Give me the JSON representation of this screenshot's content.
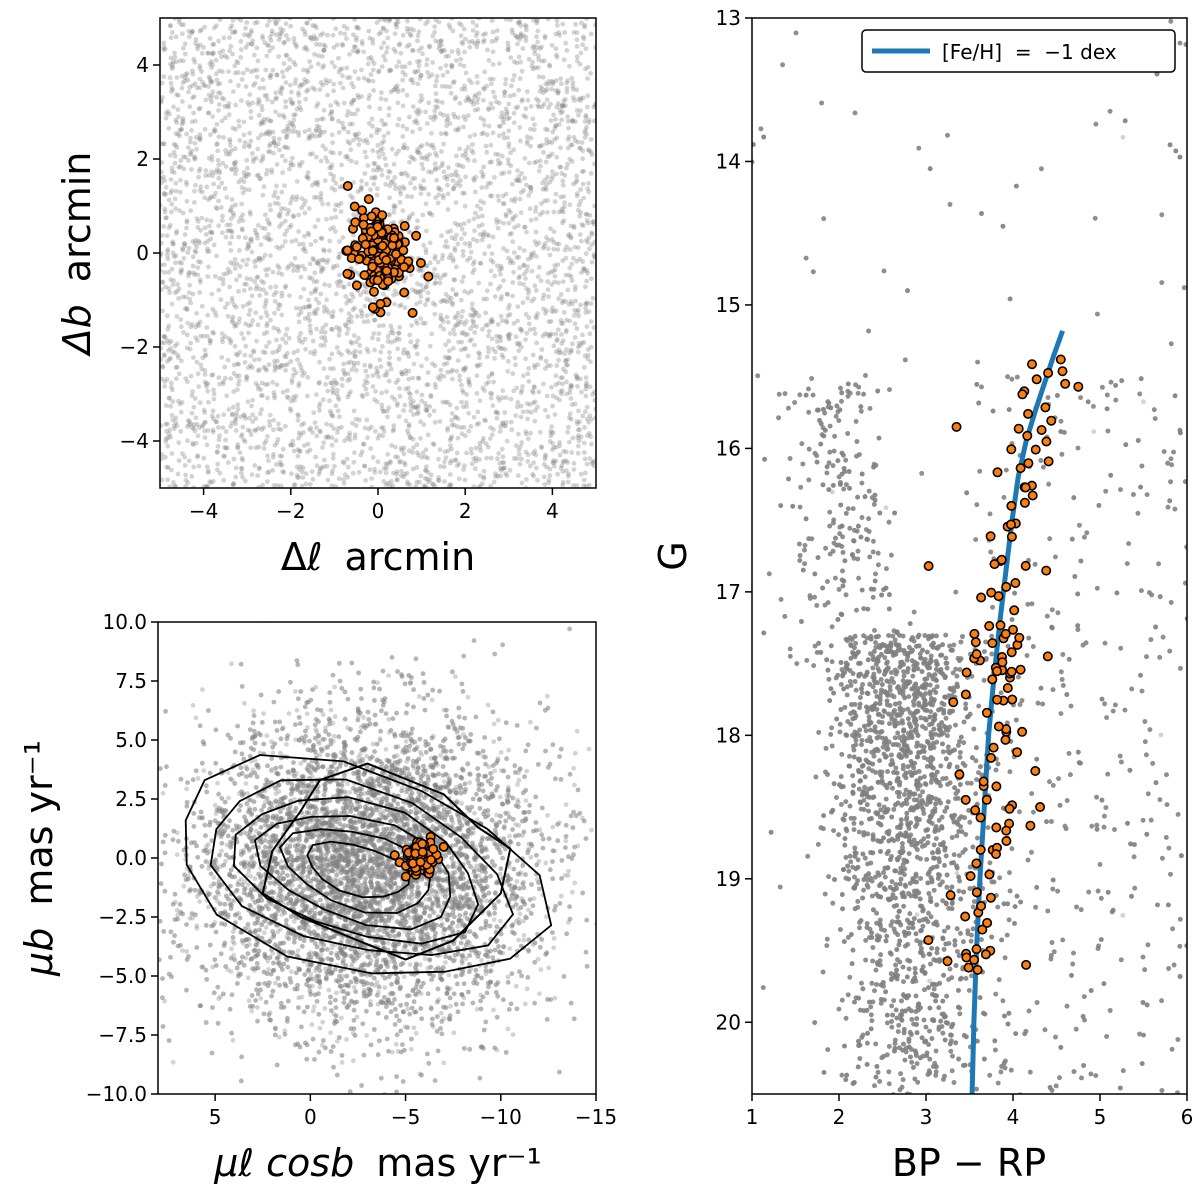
{
  "figure": {
    "panels": [
      "sky",
      "proper_motion",
      "cmd"
    ]
  },
  "chart_data": [
    {
      "id": "sky",
      "type": "scatter",
      "title": "",
      "xlabel_main": "Δℓ",
      "xlabel_unit": "arcmin",
      "ylabel_main": "Δb",
      "ylabel_unit": "arcmin",
      "xlim": [
        -5,
        5
      ],
      "ylim": [
        -5,
        5
      ],
      "xticks": [
        -4,
        -2,
        0,
        2,
        4
      ],
      "yticks": [
        -4,
        -2,
        0,
        2,
        4
      ],
      "xtick_labels": [
        "−4",
        "−2",
        "0",
        "2",
        "4"
      ],
      "ytick_labels": [
        "−4",
        "−2",
        "0",
        "2",
        "4"
      ],
      "grid": false,
      "series": [
        {
          "role": "field_stars",
          "color": "#808080",
          "distribution": "uniform",
          "x_range": [
            -5,
            5
          ],
          "y_range": [
            -5,
            5
          ],
          "approx_count": 4200
        },
        {
          "role": "members",
          "color": "#ff7f0e",
          "edgecolor": "#000000",
          "center": [
            0.0,
            0.0
          ],
          "sigma": [
            0.35,
            0.5
          ],
          "approx_count": 140
        }
      ]
    },
    {
      "id": "proper_motion",
      "type": "scatter",
      "title": "",
      "xlabel_main": "μℓ cosb",
      "xlabel_unit": "mas yr⁻¹",
      "ylabel_main": "μb",
      "ylabel_unit": "mas yr⁻¹",
      "xlim": [
        8,
        -15
      ],
      "ylim": [
        -10,
        10
      ],
      "xticks": [
        5,
        0,
        -5,
        -10,
        -15
      ],
      "xtick_labels": [
        "5",
        "0",
        "−5",
        "−10",
        "−15"
      ],
      "yticks": [
        10,
        7.5,
        5,
        2.5,
        0,
        -2.5,
        -5,
        -7.5,
        -10
      ],
      "ytick_labels": [
        "10.0",
        "7.5",
        "5.0",
        "2.5",
        "0.0",
        "−2.5",
        "−5.0",
        "−7.5",
        "−10.0"
      ],
      "grid": false,
      "series": [
        {
          "role": "field_stars",
          "color": "#808080",
          "center": [
            -3,
            -0.5
          ],
          "sigma": [
            4.5,
            3.2
          ],
          "approx_count": 9000
        },
        {
          "role": "members",
          "color": "#ff7f0e",
          "edgecolor": "#000000",
          "center": [
            -5.8,
            0.0
          ],
          "sigma": [
            0.5,
            0.35
          ],
          "approx_count": 80
        }
      ],
      "contours": {
        "color": "#000000",
        "center": [
          -2.5,
          -0.5
        ],
        "semi_axes": [
          [
            2.8,
            1.0
          ],
          [
            4.1,
            1.55
          ],
          [
            5.4,
            2.1
          ],
          [
            6.7,
            2.7
          ],
          [
            8.2,
            3.3
          ],
          [
            10.1,
            4.1
          ]
        ],
        "outer": [
          [
            -0.5,
            3.3
          ],
          [
            -3.0,
            4.0
          ],
          [
            -7.0,
            2.7
          ],
          [
            -8.8,
            1.3
          ],
          [
            -10.5,
            0.4
          ],
          [
            -10.0,
            -1.5
          ],
          [
            -7.5,
            -3.5
          ],
          [
            -5.0,
            -4.3
          ],
          [
            -2.5,
            -3.5
          ],
          [
            0.5,
            -2.5
          ],
          [
            2.5,
            -1.5
          ],
          [
            2.0,
            0.3
          ],
          [
            0.5,
            2.0
          ]
        ]
      }
    },
    {
      "id": "cmd",
      "type": "scatter",
      "title": "",
      "xlabel": "BP − RP",
      "ylabel": "G",
      "xlim": [
        1,
        6
      ],
      "ylim": [
        20.5,
        13
      ],
      "xticks": [
        1,
        2,
        3,
        4,
        5,
        6
      ],
      "xtick_labels": [
        "1",
        "2",
        "3",
        "4",
        "5",
        "6"
      ],
      "yticks": [
        13,
        14,
        15,
        16,
        17,
        18,
        19,
        20
      ],
      "ytick_labels": [
        "13",
        "14",
        "15",
        "16",
        "17",
        "18",
        "19",
        "20"
      ],
      "grid": false,
      "legend": {
        "position": "top-right",
        "entries": [
          {
            "label": "[Fe/H]  =  −1 dex",
            "color": "#1f77b4"
          }
        ]
      },
      "series": [
        {
          "role": "field_stars",
          "color": "#808080",
          "approx_count": 12000
        },
        {
          "role": "members",
          "color": "#ff7f0e",
          "edgecolor": "#000000",
          "approx_count": 130
        },
        {
          "role": "isochrone",
          "name": "[Fe/H]  =  −1 dex",
          "color": "#1f77b4",
          "x": [
            3.53,
            3.55,
            3.58,
            3.62,
            3.67,
            3.72,
            3.78,
            3.85,
            3.92,
            3.99,
            4.06,
            4.15,
            4.25,
            4.36,
            4.47,
            4.57
          ],
          "y": [
            20.5,
            20.0,
            19.5,
            19.0,
            18.5,
            18.0,
            17.6,
            17.2,
            16.85,
            16.5,
            16.2,
            15.95,
            15.75,
            15.55,
            15.35,
            15.18
          ]
        }
      ],
      "members_ridge": {
        "g_range": [
          15.3,
          19.65
        ],
        "ridge_offset": 0.05,
        "spread": 0.22,
        "extra_points": [
          [
            3.35,
            15.85
          ],
          [
            3.03,
            16.82
          ],
          [
            4.6,
            15.55
          ],
          [
            4.75,
            15.57
          ],
          [
            4.55,
            15.38
          ],
          [
            4.4,
            17.45
          ],
          [
            4.2,
            18.63
          ],
          [
            4.15,
            19.6
          ]
        ]
      }
    }
  ]
}
